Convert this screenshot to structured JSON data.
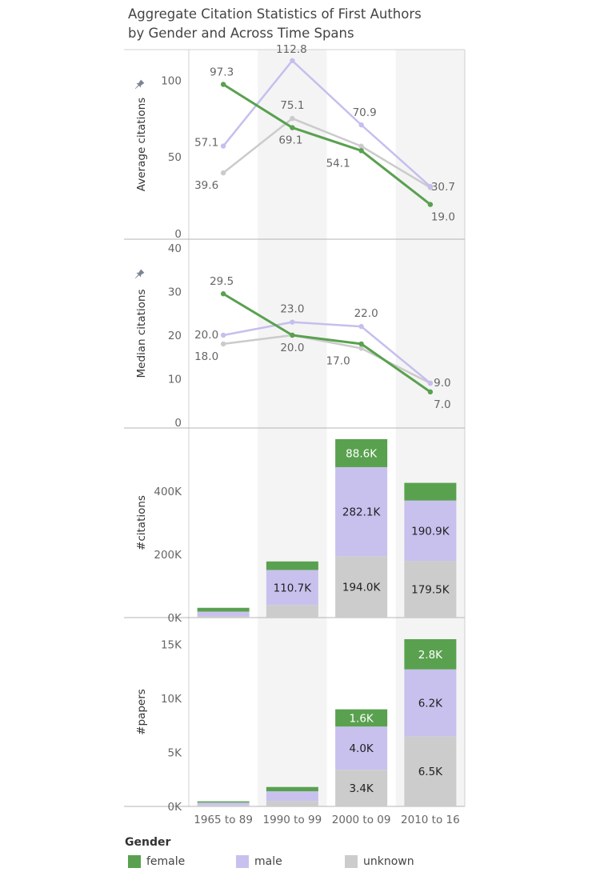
{
  "title_line1": "Aggregate Citation Statistics of First Authors",
  "title_line2": "by Gender and Across Time Spans",
  "legend": {
    "title": "Gender",
    "items": [
      {
        "label": "female",
        "color": "#59a14f"
      },
      {
        "label": "male",
        "color": "#c8c1ee"
      },
      {
        "label": "unknown",
        "color": "#cccccc"
      }
    ]
  },
  "chart_data": [
    {
      "type": "line",
      "ylabel": "Average citations",
      "ylim": [
        0,
        120
      ],
      "yticks": [
        0,
        50,
        100
      ],
      "categories": [
        "1965 to 89",
        "1990 to 99",
        "2000 to 09",
        "2010 to 16"
      ],
      "series": [
        {
          "name": "unknown",
          "values": [
            39.6,
            75.1,
            57.0,
            30.0
          ]
        },
        {
          "name": "male",
          "values": [
            57.1,
            112.8,
            70.9,
            30.7
          ]
        },
        {
          "name": "female",
          "values": [
            97.3,
            69.1,
            54.1,
            19.0
          ]
        }
      ],
      "labels": [
        {
          "text": "97.3",
          "category": 0,
          "value": 97.3
        },
        {
          "text": "57.1",
          "category": 0,
          "value": 57.1
        },
        {
          "text": "39.6",
          "category": 0,
          "value": 39.6
        },
        {
          "text": "112.8",
          "category": 1,
          "value": 112.8
        },
        {
          "text": "75.1",
          "category": 1,
          "value": 75.1
        },
        {
          "text": "69.1",
          "category": 1,
          "value": 69.1
        },
        {
          "text": "70.9",
          "category": 2,
          "value": 70.9
        },
        {
          "text": "54.1",
          "category": 2,
          "value": 54.1
        },
        {
          "text": "30.7",
          "category": 3,
          "value": 30.7
        },
        {
          "text": "19.0",
          "category": 3,
          "value": 19.0
        }
      ]
    },
    {
      "type": "line",
      "ylabel": "Median citations",
      "ylim": [
        0,
        40
      ],
      "yticks": [
        0,
        10,
        20,
        30,
        40
      ],
      "categories": [
        "1965 to 89",
        "1990 to 99",
        "2000 to 09",
        "2010 to 16"
      ],
      "series": [
        {
          "name": "unknown",
          "values": [
            18.0,
            20.0,
            17.0,
            9.0
          ]
        },
        {
          "name": "male",
          "values": [
            20.0,
            23.0,
            22.0,
            9.0
          ]
        },
        {
          "name": "female",
          "values": [
            29.5,
            20.0,
            18.0,
            7.0
          ]
        }
      ],
      "labels": [
        {
          "text": "29.5",
          "category": 0,
          "value": 29.5
        },
        {
          "text": "20.0",
          "category": 0,
          "value": 20.0
        },
        {
          "text": "18.0",
          "category": 0,
          "value": 18.0
        },
        {
          "text": "23.0",
          "category": 1,
          "value": 23.0
        },
        {
          "text": "20.0",
          "category": 1,
          "value": 20.0
        },
        {
          "text": "22.0",
          "category": 2,
          "value": 22.0
        },
        {
          "text": "17.0",
          "category": 2,
          "value": 17.0
        },
        {
          "text": "9.0",
          "category": 3,
          "value": 9.0
        },
        {
          "text": "7.0",
          "category": 3,
          "value": 7.0
        }
      ]
    },
    {
      "type": "bar",
      "stacked": true,
      "ylabel": "#citations",
      "ylim": [
        0,
        600000
      ],
      "yticks": [
        0,
        200000,
        400000
      ],
      "ytick_labels": [
        "0K",
        "200K",
        "400K"
      ],
      "categories": [
        "1965 to 89",
        "1990 to 99",
        "2000 to 09",
        "2010 to 16"
      ],
      "series": [
        {
          "name": "unknown",
          "values": [
            5000,
            40000,
            194000,
            179500
          ],
          "labels": [
            "",
            "",
            "194.0K",
            "179.5K"
          ]
        },
        {
          "name": "male",
          "values": [
            14000,
            110700,
            282100,
            190900
          ],
          "labels": [
            "",
            "110.7K",
            "282.1K",
            "190.9K"
          ]
        },
        {
          "name": "female",
          "values": [
            12000,
            27000,
            88600,
            56000
          ],
          "labels": [
            "",
            "",
            "88.6K",
            ""
          ]
        }
      ]
    },
    {
      "type": "bar",
      "stacked": true,
      "ylabel": "#papers",
      "ylim": [
        0,
        17500
      ],
      "yticks": [
        0,
        5000,
        10000,
        15000
      ],
      "ytick_labels": [
        "0K",
        "5K",
        "10K",
        "15K"
      ],
      "categories": [
        "1965 to 89",
        "1990 to 99",
        "2000 to 09",
        "2010 to 16"
      ],
      "series": [
        {
          "name": "unknown",
          "values": [
            100,
            500,
            3400,
            6500
          ],
          "labels": [
            "",
            "",
            "3.4K",
            "6.5K"
          ]
        },
        {
          "name": "male",
          "values": [
            250,
            900,
            4000,
            6200
          ],
          "labels": [
            "",
            "",
            "4.0K",
            "6.2K"
          ]
        },
        {
          "name": "female",
          "values": [
            120,
            400,
            1600,
            2800
          ],
          "labels": [
            "",
            "",
            "1.6K",
            "2.8K"
          ]
        }
      ]
    }
  ]
}
